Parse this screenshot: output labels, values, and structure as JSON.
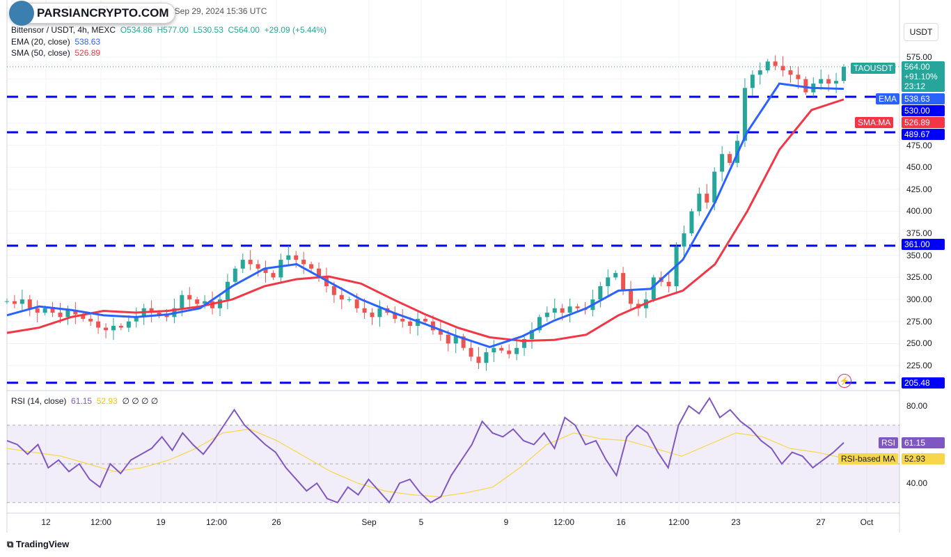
{
  "header": {
    "title_suffix": ", Sep 29, 2024 15:36 UTC",
    "symbol": "Bittensor / USDT, 4h, MEXC",
    "open": "O534.86",
    "high": "H577.00",
    "low": "L530.53",
    "close": "C564.00",
    "change": "+29.09 (+5.44%)"
  },
  "watermark": {
    "text": "PARSIANCRYPTO.COM"
  },
  "indicators": {
    "ema_label": "EMA (20, close)",
    "ema_value": "538.63",
    "sma_label": "SMA (50, close)",
    "sma_value": "526.89",
    "rsi_label": "RSI (14, close)",
    "rsi_value": "61.15",
    "rsi_ma_value": "52.93",
    "rsi_extra": "∅ ∅ ∅ ∅"
  },
  "currency_button": "USDT",
  "tags": {
    "symbol": "TAOUSDT",
    "price": "564.00",
    "pct": "+91.10%",
    "countdown": "23:12",
    "ema": "EMA",
    "ema_val": "538.63",
    "lvl530": "530.00",
    "sma": "SMA:MA",
    "sma_val": "526.89",
    "lvl489": "489.67",
    "lvl361": "361.00",
    "lvl205": "205.48",
    "rsi": "RSI",
    "rsi_val": "61.15",
    "rsi_ma": "RSI-based MA",
    "rsi_ma_val": "52.93"
  },
  "footer": {
    "brand": "TradingView"
  },
  "colors": {
    "up": "#26a69a",
    "down": "#ef5350",
    "ema": "#2962ff",
    "sma": "#f23645",
    "levels": "#0000ff",
    "rsi": "#7e57c2",
    "rsi_ma": "#f7d64a"
  },
  "chart_data": {
    "type": "candlestick",
    "y_ticks": [
      "575.00",
      "475.00",
      "450.00",
      "425.00",
      "400.00",
      "375.00",
      "350.00",
      "325.00",
      "300.00",
      "275.00",
      "250.00",
      "225.00"
    ],
    "x_ticks": [
      "12",
      "12:00",
      "19",
      "12:00",
      "26",
      "Sep",
      "5",
      "9",
      "12:00",
      "16",
      "12:00",
      "23",
      "27",
      "Oct"
    ],
    "ylim": [
      205,
      600
    ],
    "levels": [
      530,
      489.67,
      361,
      205.48
    ],
    "closes": [
      298,
      295,
      300,
      290,
      285,
      290,
      285,
      280,
      288,
      283,
      278,
      275,
      268,
      265,
      270,
      268,
      275,
      280,
      290,
      285,
      282,
      280,
      290,
      305,
      300,
      295,
      298,
      290,
      300,
      320,
      335,
      345,
      340,
      335,
      330,
      325,
      345,
      350,
      345,
      340,
      335,
      325,
      315,
      305,
      300,
      300,
      290,
      285,
      280,
      290,
      285,
      278,
      275,
      270,
      278,
      275,
      265,
      260,
      250,
      258,
      245,
      235,
      228,
      240,
      245,
      242,
      238,
      245,
      255,
      265,
      280,
      285,
      290,
      285,
      292,
      290,
      288,
      300,
      315,
      325,
      330,
      310,
      295,
      290,
      300,
      325,
      320,
      315,
      360,
      375,
      400,
      420,
      410,
      445,
      465,
      455,
      480,
      540,
      555,
      560,
      570,
      565,
      560,
      555,
      550,
      535,
      545,
      550,
      545,
      548,
      564
    ],
    "ema": [
      282,
      292,
      288,
      282,
      280,
      283,
      290,
      315,
      335,
      340,
      320,
      300,
      285,
      272,
      258,
      246,
      258,
      276,
      290,
      310,
      312,
      345,
      410,
      490,
      545,
      540,
      539
    ],
    "sma": [
      262,
      268,
      280,
      287,
      285,
      287,
      292,
      300,
      315,
      323,
      326,
      318,
      300,
      283,
      268,
      257,
      253,
      254,
      260,
      282,
      298,
      310,
      340,
      400,
      470,
      515,
      527
    ],
    "rsi_ylim": [
      25,
      90
    ],
    "rsi_ticks": [
      "80.00",
      "40.00"
    ],
    "rsi_bands": [
      70,
      30
    ],
    "rsi": [
      62,
      60,
      55,
      60,
      48,
      52,
      46,
      50,
      42,
      38,
      50,
      45,
      52,
      55,
      58,
      64,
      57,
      66,
      60,
      55,
      62,
      70,
      78,
      70,
      65,
      60,
      56,
      48,
      42,
      36,
      40,
      32,
      30,
      38,
      34,
      42,
      36,
      30,
      40,
      42,
      35,
      30,
      33,
      44,
      52,
      60,
      72,
      66,
      64,
      68,
      62,
      60,
      66,
      58,
      74,
      70,
      60,
      62,
      52,
      44,
      64,
      70,
      66,
      56,
      48,
      70,
      80,
      76,
      84,
      74,
      78,
      72,
      68,
      62,
      58,
      50,
      56,
      54,
      48,
      52,
      56,
      61
    ],
    "rsi_ma": [
      58,
      56,
      54,
      50,
      46,
      48,
      52,
      58,
      66,
      68,
      62,
      54,
      46,
      40,
      36,
      34,
      33,
      35,
      38,
      48,
      60,
      66,
      63,
      62,
      58,
      54,
      60,
      66,
      64,
      58,
      56,
      53
    ]
  }
}
